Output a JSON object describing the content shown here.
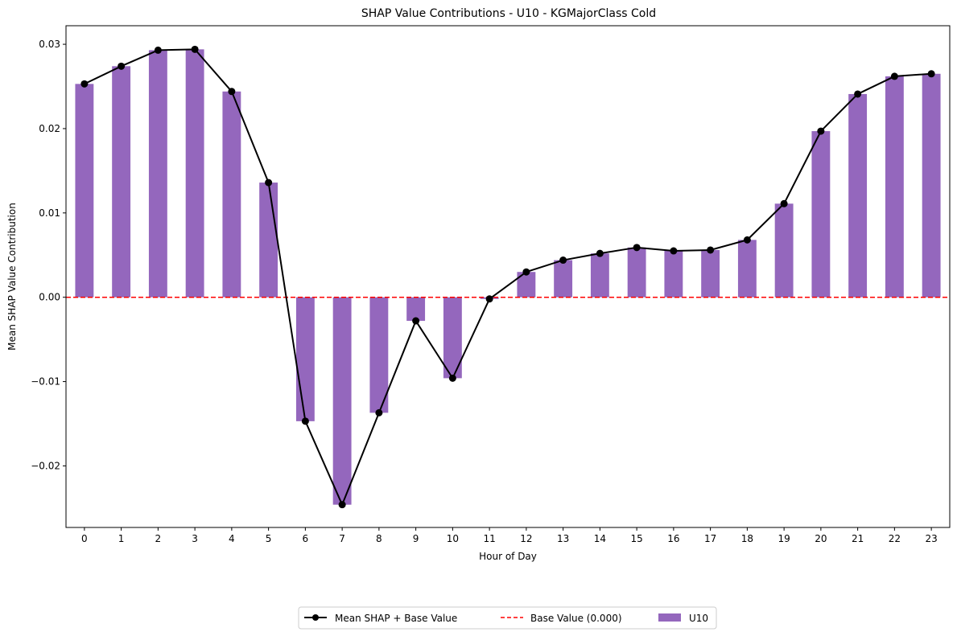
{
  "chart_data": {
    "type": "bar",
    "title": "SHAP Value Contributions - U10 - KGMajorClass Cold",
    "xlabel": "Hour of Day",
    "ylabel": "Mean SHAP Value Contribution",
    "categories": [
      "0",
      "1",
      "2",
      "3",
      "4",
      "5",
      "6",
      "7",
      "8",
      "9",
      "10",
      "11",
      "12",
      "13",
      "14",
      "15",
      "16",
      "17",
      "18",
      "19",
      "20",
      "21",
      "22",
      "23"
    ],
    "series": [
      {
        "name": "U10",
        "type": "bar",
        "color": "#9467bd",
        "values": [
          0.0253,
          0.0274,
          0.0293,
          0.0294,
          0.0244,
          0.0136,
          -0.0147,
          -0.0246,
          -0.0137,
          -0.0028,
          -0.0096,
          -0.0002,
          0.003,
          0.0044,
          0.0052,
          0.0059,
          0.0055,
          0.0056,
          0.0068,
          0.0111,
          0.0197,
          0.0241,
          0.0262,
          0.0265
        ]
      },
      {
        "name": "Mean SHAP + Base Value",
        "type": "line",
        "color": "#000000",
        "values": [
          0.0253,
          0.0274,
          0.0293,
          0.0294,
          0.0244,
          0.0136,
          -0.0147,
          -0.0246,
          -0.0137,
          -0.0028,
          -0.0096,
          -0.0002,
          0.003,
          0.0044,
          0.0052,
          0.0059,
          0.0055,
          0.0056,
          0.0068,
          0.0111,
          0.0197,
          0.0241,
          0.0262,
          0.0265
        ]
      }
    ],
    "baseline": {
      "name": "Base Value (0.000)",
      "value": 0.0,
      "color": "#ff0000",
      "style": "dashed"
    },
    "yticks": [
      -0.02,
      -0.01,
      0.0,
      0.01,
      0.02,
      0.03
    ],
    "ytick_labels": [
      "−0.02",
      "−0.01",
      "0.00",
      "0.01",
      "0.02",
      "0.03"
    ],
    "ylim": [
      -0.0273,
      0.0322
    ],
    "xlim": [
      -0.5,
      23.5
    ],
    "grid": false,
    "legend": {
      "placement": "bottom-center",
      "entries": [
        "Mean SHAP + Base Value",
        "Base Value (0.000)",
        "U10"
      ]
    }
  }
}
